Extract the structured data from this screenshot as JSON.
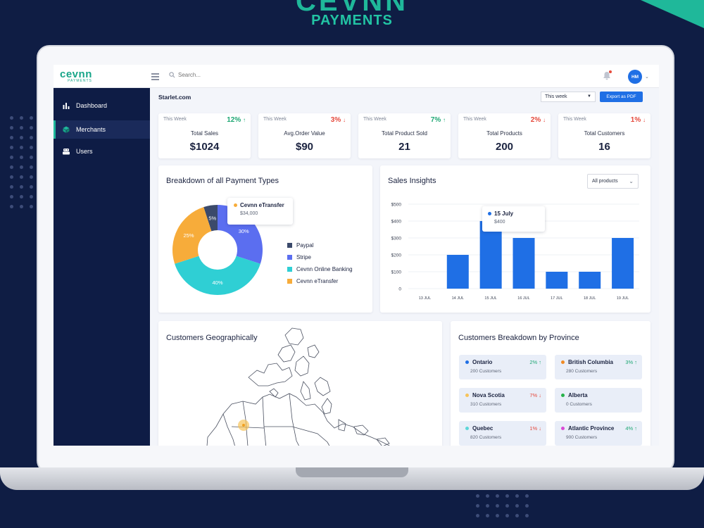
{
  "brand": {
    "banner_mark": "CEVNN",
    "banner_sub": "PAYMENTS",
    "logo_text": "cevnn",
    "logo_sub": "PAYMENTS"
  },
  "topbar": {
    "search_placeholder": "Search...",
    "avatar_initials": "HM"
  },
  "sidebar": {
    "items": [
      {
        "label": "Dashboard",
        "icon": "bar-chart-icon"
      },
      {
        "label": "Merchants",
        "icon": "cube-icon"
      },
      {
        "label": "Users",
        "icon": "users-icon"
      }
    ]
  },
  "header": {
    "site": "Starlet.com",
    "period_select": "This week",
    "export_label": "Export as PDF"
  },
  "stats": [
    {
      "period": "This Week",
      "delta": "12%",
      "arrow": "↑",
      "trend": "up",
      "label": "Total Sales",
      "value": "$1024"
    },
    {
      "period": "This Week",
      "delta": "3%",
      "arrow": "↓",
      "trend": "down",
      "label": "Avg.Order Value",
      "value": "$90"
    },
    {
      "period": "This Week",
      "delta": "7%",
      "arrow": "↑",
      "trend": "up",
      "label": "Total Product Sold",
      "value": "21"
    },
    {
      "period": "This Week",
      "delta": "2%",
      "arrow": "↓",
      "trend": "down",
      "label": "Total Products",
      "value": "200"
    },
    {
      "period": "This Week",
      "delta": "1%",
      "arrow": "↓",
      "trend": "down",
      "label": "Total Customers",
      "value": "16"
    }
  ],
  "payment_types": {
    "title": "Breakdown of all Payment Types",
    "tooltip": {
      "label": "Cevnn eTransfer",
      "value": "$34,000"
    },
    "legend": [
      {
        "label": "Paypal",
        "color": "#3b4a6b"
      },
      {
        "label": "Stripe",
        "color": "#5b6ef0"
      },
      {
        "label": "Cevnn Online Banking",
        "color": "#2fcfd4"
      },
      {
        "label": "Cevnn eTransfer",
        "color": "#f7ac3a"
      }
    ]
  },
  "sales_insights": {
    "title": "Sales Insights",
    "filter": "All products",
    "tooltip": {
      "label": "15 July",
      "value": "$400"
    }
  },
  "geo": {
    "title": "Customers Geographically"
  },
  "provinces": {
    "title": "Customers Breakdown by Province",
    "items": [
      {
        "name": "Ontario",
        "customers": "200 Customers",
        "delta": "2%",
        "arrow": "↑",
        "trend": "up",
        "color": "#1f6fe5"
      },
      {
        "name": "British Columbia",
        "customers": "280 Customers",
        "delta": "3%",
        "arrow": "↑",
        "trend": "up",
        "color": "#f08a24"
      },
      {
        "name": "Nova Scotia",
        "customers": "310 Customers",
        "delta": "7%",
        "arrow": "↓",
        "trend": "down",
        "color": "#f7c35a"
      },
      {
        "name": "Alberta",
        "customers": "0 Customers",
        "delta": "",
        "arrow": "",
        "trend": "up",
        "color": "#27b24a"
      },
      {
        "name": "Quebec",
        "customers": "820 Customers",
        "delta": "1%",
        "arrow": "↓",
        "trend": "down",
        "color": "#5dd6d8"
      },
      {
        "name": "Atlantic Province",
        "customers": "900 Customers",
        "delta": "4%",
        "arrow": "↑",
        "trend": "up",
        "color": "#d94ad6"
      }
    ]
  },
  "chart_data": [
    {
      "type": "pie",
      "title": "Breakdown of all Payment Types",
      "categories": [
        "Paypal",
        "Stripe",
        "Cevnn Online Banking",
        "Cevnn eTransfer"
      ],
      "values": [
        5,
        30,
        40,
        25
      ],
      "labels": [
        "5%",
        "30%",
        "40%",
        "25%"
      ]
    },
    {
      "type": "bar",
      "title": "Sales Insights",
      "categories": [
        "13 JUL",
        "14 JUL",
        "15 JUL",
        "16 JUL",
        "17 JUL",
        "18 JUL",
        "19 JUL"
      ],
      "values": [
        0,
        200,
        400,
        300,
        100,
        100,
        300
      ],
      "yticks": [
        "0",
        "$100",
        "$200",
        "$300",
        "$400",
        "$500"
      ],
      "ylim": [
        0,
        500
      ]
    }
  ]
}
